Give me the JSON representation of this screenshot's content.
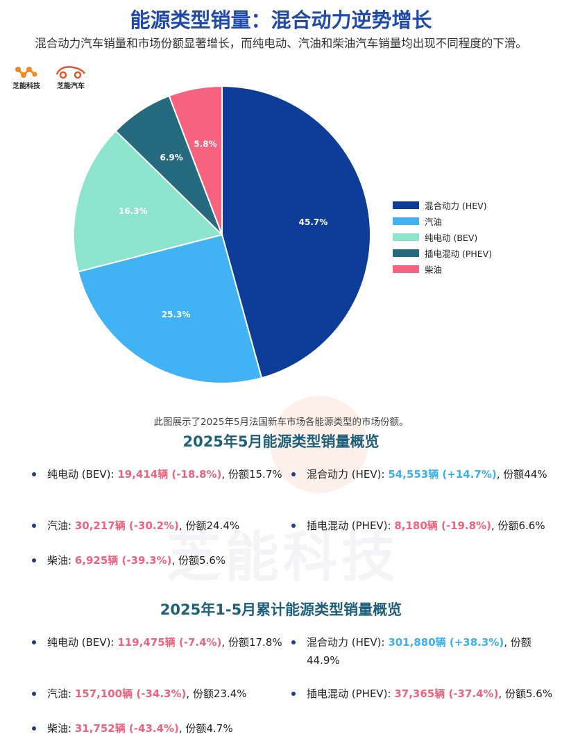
{
  "title": "能源类型销量：混合动力逆势增长",
  "subtitle": "混合动力汽车销量和市场份额显著增长，而纯电动、汽油和柴油汽车销量均出现不同程度的下滑。",
  "logos": [
    {
      "name": "芝能科技",
      "icon": "molecule-logo-icon"
    },
    {
      "name": "芝能汽车",
      "icon": "car-logo-icon"
    }
  ],
  "watermark": "芝能科技",
  "chart_data": {
    "type": "pie",
    "title": "",
    "slices": [
      {
        "label": "混合动力 (HEV)",
        "value": 45.7,
        "display": "45.7%",
        "color": "#0d3d99"
      },
      {
        "label": "汽油",
        "value": 25.3,
        "display": "25.3%",
        "color": "#41b3f4"
      },
      {
        "label": "纯电动 (BEV)",
        "value": 16.3,
        "display": "16.3%",
        "color": "#8de4cc"
      },
      {
        "label": "插电混动 (PHEV)",
        "value": 6.9,
        "display": "6.9%",
        "color": "#256a7e"
      },
      {
        "label": "柴油",
        "value": 5.8,
        "display": "5.8%",
        "color": "#f7637e"
      }
    ],
    "start": "12 o'clock",
    "direction": "clockwise",
    "legend_position": "right"
  },
  "caption": "此图展示了2025年5月法国新车市场各能源类型的市场份额。",
  "sections": [
    {
      "title": "2025年5月能源类型销量概览",
      "items": [
        {
          "label": "纯电动 (BEV): ",
          "sales": "19,414辆 (-18.8%)",
          "trend": "neg",
          "share": ", 份额15.7%"
        },
        {
          "label": "混合动力 (HEV): ",
          "sales": "54,553辆 (+14.7%)",
          "trend": "pos",
          "share": ", 份额44%"
        },
        {
          "label": "汽油: ",
          "sales": "30,217辆 (-30.2%)",
          "trend": "neg",
          "share": ", 份额24.4%"
        },
        {
          "label": "插电混动 (PHEV): ",
          "sales": "8,180辆 (-19.8%)",
          "trend": "neg",
          "share": ", 份额6.6%"
        },
        {
          "label": "柴油: ",
          "sales": "6,925辆 (-39.3%)",
          "trend": "neg",
          "share": ", 份额5.6%"
        }
      ]
    },
    {
      "title": "2025年1-5月累计能源类型销量概览",
      "items": [
        {
          "label": "纯电动 (BEV): ",
          "sales": "119,475辆 (-7.4%)",
          "trend": "neg",
          "share": ", 份额17.8%"
        },
        {
          "label": "混合动力 (HEV): ",
          "sales": "301,880辆 (+38.3%)",
          "trend": "pos",
          "share": ", 份额44.9%"
        },
        {
          "label": "汽油: ",
          "sales": "157,100辆 (-34.3%)",
          "trend": "neg",
          "share": ", 份额23.4%"
        },
        {
          "label": "插电混动 (PHEV): ",
          "sales": "37,365辆 (-37.4%)",
          "trend": "neg",
          "share": ", 份额5.6%"
        },
        {
          "label": "柴油: ",
          "sales": "31,752辆 (-43.4%)",
          "trend": "neg",
          "share": ", 份额4.7%"
        }
      ]
    }
  ]
}
